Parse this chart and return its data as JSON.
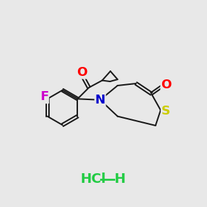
{
  "background_color": "#e8e8e8",
  "bond_color": "#1a1a1a",
  "atom_colors": {
    "O": "#ff0000",
    "N": "#0000cc",
    "S": "#cccc00",
    "F": "#cc00cc",
    "C": "#1a1a1a",
    "Cl": "#22cc44",
    "H": "#22cc44"
  },
  "font_size_atoms": 13,
  "font_size_hcl": 14
}
